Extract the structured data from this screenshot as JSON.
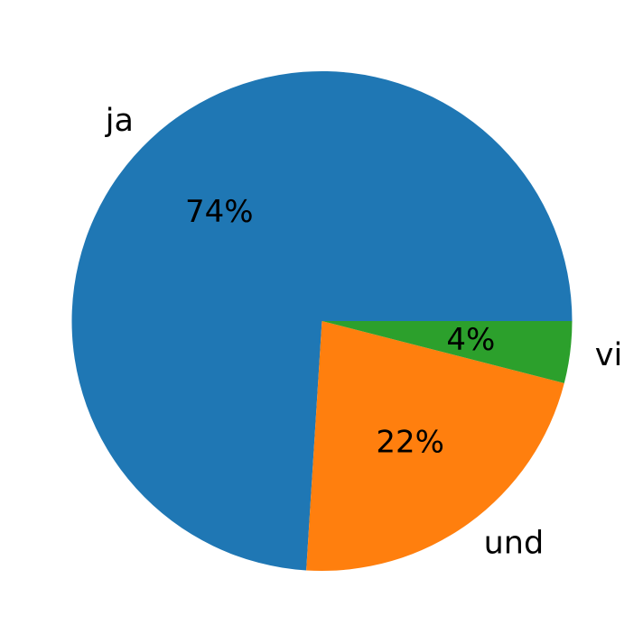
{
  "chart_data": {
    "type": "pie",
    "title": "",
    "slices": [
      {
        "label": "ja",
        "value": 74,
        "pct_label": "74%",
        "color": "#1f77b4"
      },
      {
        "label": "und",
        "value": 22,
        "pct_label": "22%",
        "color": "#ff7f0e"
      },
      {
        "label": "vi",
        "value": 4,
        "pct_label": "4%",
        "color": "#2ca02c"
      }
    ],
    "start_angle_deg": 0,
    "direction": "counterclockwise",
    "legend": "none"
  }
}
